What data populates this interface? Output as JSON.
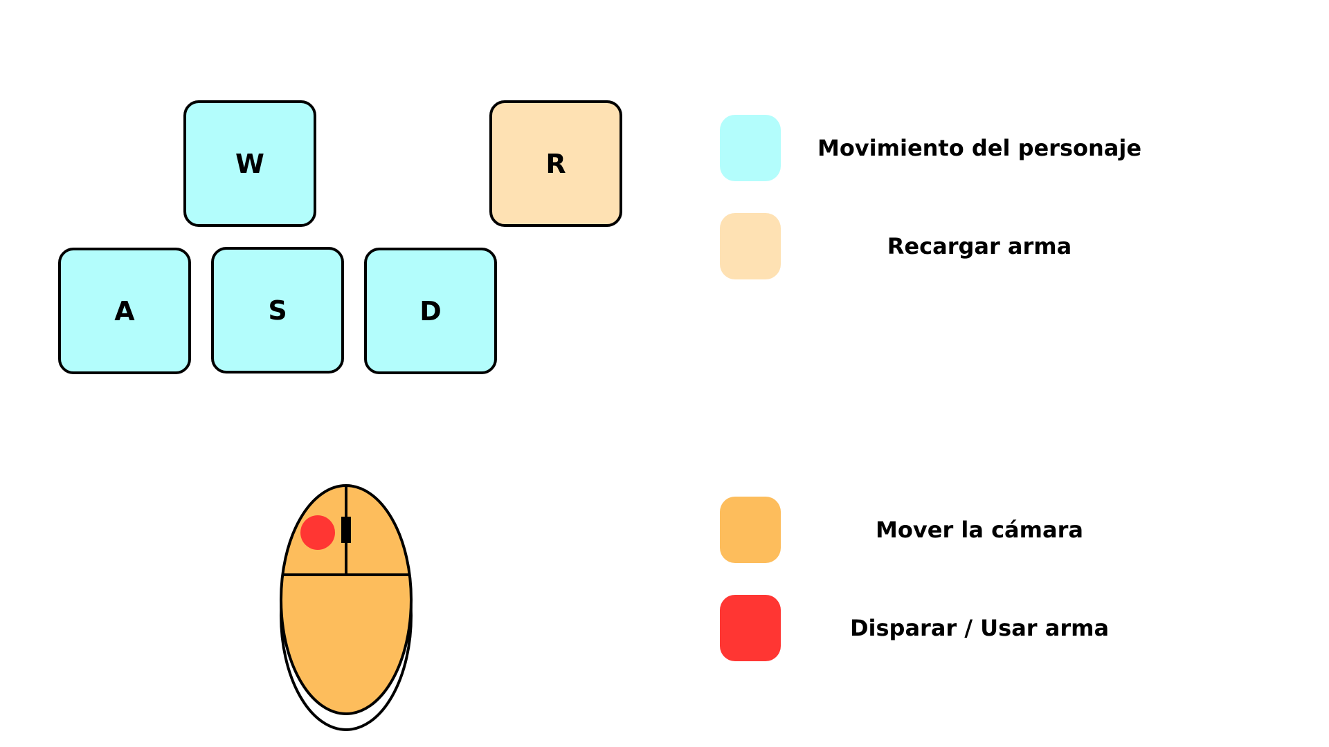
{
  "keys": {
    "w": "W",
    "a": "A",
    "s": "S",
    "d": "D",
    "r": "R"
  },
  "legend": [
    {
      "label": "Movimiento del personaje",
      "color": "#B3FDFC"
    },
    {
      "label": "Recargar arma",
      "color": "#FEE1B3"
    },
    {
      "label": "Mover la cámara",
      "color": "#FDBD5C"
    },
    {
      "label": "Disparar / Usar arma",
      "color": "#FF3633"
    }
  ],
  "colors": {
    "movement": "#B3FDFC",
    "reload": "#FEE1B3",
    "camera": "#FDBD5C",
    "fire": "#FF3633",
    "outline": "#000000"
  },
  "icons": {
    "mouse": "computer-mouse-icon"
  }
}
